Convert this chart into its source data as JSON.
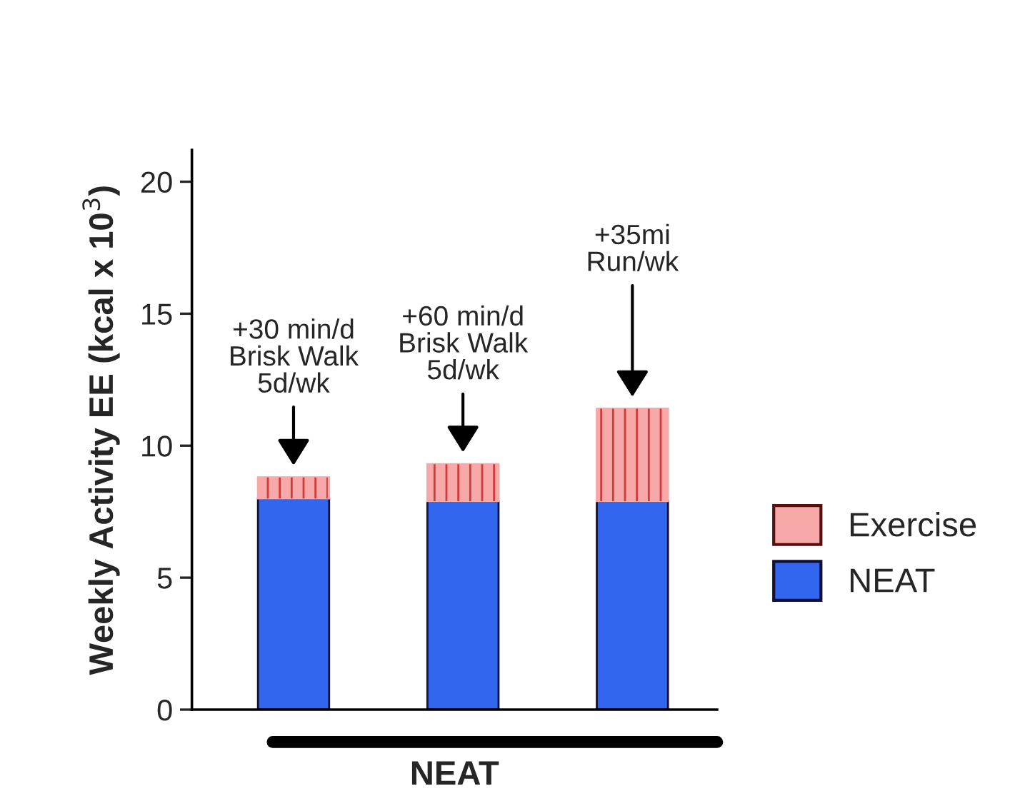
{
  "chart_data": {
    "type": "bar",
    "stacked": true,
    "xlabel": "NEAT",
    "ylabel": "Weekly Activity EE (kcal x 10$^{3}$)",
    "categories": [
      null,
      null,
      null
    ],
    "series": [
      {
        "name": "NEAT",
        "color": "#3366ee",
        "values": [
          8.0,
          7.9,
          7.9
        ]
      },
      {
        "name": "Exercise",
        "color": "#f7a8a8",
        "values": [
          0.8,
          1.4,
          3.5
        ]
      }
    ],
    "annotations": [
      "+30 min/d\nBrisk Walk\n5d/wk",
      "+60 min/d\nBrisk Walk\n5d/wk",
      "+35mi\nRun/wk"
    ],
    "ylim": [
      0,
      21.2
    ],
    "yticks": [
      0,
      5,
      10,
      15,
      20
    ],
    "grid": false,
    "legend": "right"
  }
}
